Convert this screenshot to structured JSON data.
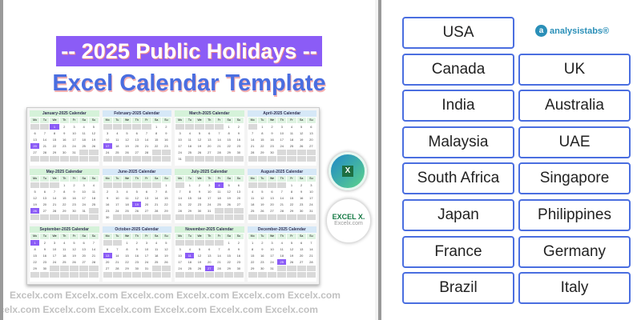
{
  "title_line1": "-- 2025 Public Holidays --",
  "title_line2": "Excel Calendar Template",
  "weekdays": [
    "Mo",
    "Tu",
    "We",
    "Th",
    "Fr",
    "Sa",
    "Su"
  ],
  "months": [
    "January-2025  Calendar",
    "February-2025  Calendar",
    "March-2025  Calendar",
    "April-2025  Calendar",
    "May-2025  Calendar",
    "June-2025  Calendar",
    "July-2025  Calendar",
    "August-2025  Calendar",
    "September-2025  Calendar",
    "October-2025  Calendar",
    "November-2025  Calendar",
    "December-2025  Calendar"
  ],
  "holidays": {
    "0": [
      1,
      20
    ],
    "1": [
      17
    ],
    "4": [
      26
    ],
    "5": [
      19
    ],
    "6": [
      4
    ],
    "8": [
      1
    ],
    "9": [
      13
    ],
    "10": [
      11,
      27
    ],
    "11": [
      25
    ]
  },
  "colors": {
    "accent": "#8b5cf6",
    "title_blue": "#4a6ee0",
    "button_border": "#4a6ee0",
    "header_green": "#d5f2d9"
  },
  "badges": {
    "excel_icon": "X",
    "excelx_brand": "EXCEL X.",
    "excelx_site": "Excelx.com"
  },
  "watermark": "Excelx.com",
  "logo": {
    "icon": "analysistabs-logo-icon",
    "text": "analysistabs®"
  },
  "countries": [
    "USA",
    "Canada",
    "UK",
    "India",
    "Australia",
    "Malaysia",
    "UAE",
    "South Africa",
    "Singapore",
    "Japan",
    "Philippines",
    "France",
    "Germany",
    "Brazil",
    "Italy"
  ]
}
